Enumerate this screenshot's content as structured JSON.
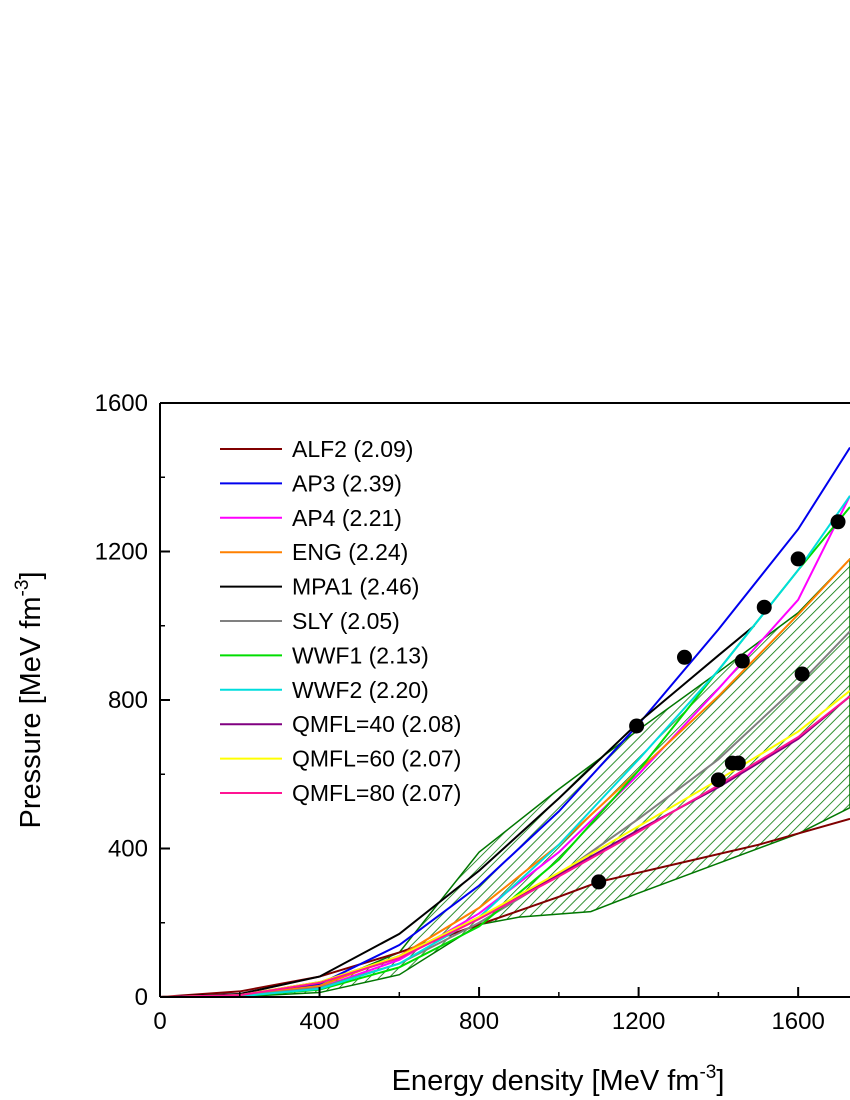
{
  "chart_data": {
    "type": "line",
    "xlabel": "Energy density [MeV fm",
    "xlabel_sup": "-3",
    "xlabel_end": "]",
    "ylabel": "Pressure [MeV fm",
    "ylabel_sup": "-3",
    "ylabel_end": "]",
    "xlim": [
      0,
      1730
    ],
    "ylim": [
      0,
      1600
    ],
    "xticks": [
      0,
      400,
      800,
      1200,
      1600
    ],
    "yticks": [
      0,
      400,
      800,
      1200,
      1600
    ],
    "legend_position": "top-left",
    "series": [
      {
        "name": "ALF2 (2.09)",
        "color": "#800000",
        "x": [
          0,
          200,
          400,
          600,
          800,
          1000,
          1100,
          1300,
          1500,
          1730
        ],
        "y": [
          0,
          15,
          55,
          120,
          195,
          270,
          310,
          360,
          410,
          480
        ]
      },
      {
        "name": "AP3 (2.39)",
        "color": "#0000ee",
        "x": [
          0,
          200,
          400,
          600,
          800,
          1000,
          1200,
          1400,
          1600,
          1730
        ],
        "y": [
          0,
          3,
          35,
          140,
          300,
          500,
          735,
          990,
          1260,
          1480
        ]
      },
      {
        "name": "AP4 (2.21)",
        "color": "#ff00ff",
        "x": [
          0,
          200,
          400,
          600,
          800,
          1000,
          1200,
          1400,
          1600,
          1730
        ],
        "y": [
          0,
          3,
          25,
          100,
          225,
          390,
          600,
          830,
          1070,
          1350
        ]
      },
      {
        "name": "ENG (2.24)",
        "color": "#ff8000",
        "x": [
          0,
          200,
          400,
          600,
          800,
          1000,
          1200,
          1400,
          1600,
          1730
        ],
        "y": [
          0,
          4,
          30,
          110,
          240,
          410,
          610,
          810,
          1030,
          1180
        ]
      },
      {
        "name": "MPA1 (2.46)",
        "color": "#000000",
        "x": [
          0,
          200,
          400,
          600,
          800,
          1000,
          1200,
          1300,
          1400,
          1490
        ],
        "y": [
          0,
          8,
          55,
          170,
          340,
          535,
          740,
          830,
          920,
          1000
        ]
      },
      {
        "name": "SLY (2.05)",
        "color": "#808080",
        "x": [
          0,
          200,
          400,
          600,
          800,
          1000,
          1200,
          1400,
          1600,
          1730
        ],
        "y": [
          0,
          3,
          25,
          90,
          200,
          330,
          480,
          640,
          840,
          985
        ]
      },
      {
        "name": "WWF1 (2.13)",
        "color": "#00dd00",
        "x": [
          0,
          200,
          400,
          600,
          800,
          1000,
          1200,
          1400,
          1600,
          1730
        ],
        "y": [
          0,
          2,
          20,
          80,
          190,
          370,
          610,
          880,
          1150,
          1320
        ]
      },
      {
        "name": "WWF2 (2.20)",
        "color": "#00dddd",
        "x": [
          0,
          200,
          400,
          600,
          800,
          1000,
          1200,
          1400,
          1600,
          1730
        ],
        "y": [
          0,
          2,
          22,
          90,
          215,
          410,
          640,
          880,
          1150,
          1350
        ]
      },
      {
        "name": "QMFL=40 (2.08)",
        "color": "#800080",
        "x": [
          0,
          200,
          400,
          600,
          800,
          1000,
          1200,
          1400,
          1600,
          1730
        ],
        "y": [
          0,
          5,
          40,
          110,
          215,
          330,
          450,
          565,
          695,
          810
        ]
      },
      {
        "name": "QMFL=60 (2.07)",
        "color": "#ffff00",
        "x": [
          0,
          200,
          400,
          600,
          800,
          1000,
          1200,
          1400,
          1600,
          1730
        ],
        "y": [
          0,
          5,
          40,
          110,
          215,
          335,
          460,
          585,
          715,
          825
        ]
      },
      {
        "name": "QMFL=80 (2.07)",
        "color": "#ff1493",
        "x": [
          0,
          200,
          400,
          600,
          800,
          1000,
          1200,
          1400,
          1600,
          1730
        ],
        "y": [
          0,
          5,
          38,
          105,
          210,
          325,
          445,
          570,
          700,
          810
        ]
      }
    ],
    "band": {
      "color": "#007700",
      "upper_x": [
        0,
        200,
        400,
        600,
        800,
        1000,
        1200,
        1400,
        1600,
        1730
      ],
      "upper_y": [
        0,
        4,
        30,
        120,
        390,
        560,
        720,
        875,
        1035,
        1180
      ],
      "lower_x": [
        0,
        200,
        400,
        600,
        800,
        900,
        1080,
        1200,
        1400,
        1600,
        1730
      ],
      "lower_y": [
        0,
        1,
        12,
        60,
        195,
        215,
        230,
        280,
        360,
        440,
        510
      ]
    },
    "points": {
      "x": [
        1100,
        1195,
        1315,
        1400,
        1435,
        1450,
        1460,
        1515,
        1600,
        1610,
        1700
      ],
      "y": [
        310,
        730,
        915,
        585,
        630,
        630,
        905,
        1050,
        1180,
        870,
        1280
      ]
    }
  }
}
